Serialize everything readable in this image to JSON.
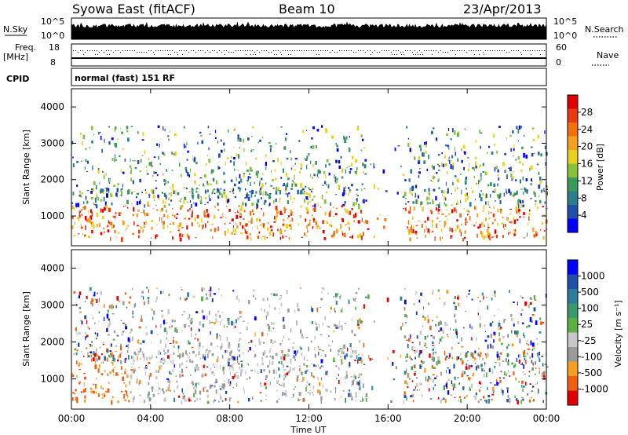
{
  "header": {
    "title": "Syowa East (fitACF)",
    "beam": "Beam 10",
    "date": "23/Apr/2013"
  },
  "top_panels": {
    "nsky_label": "N.Sky",
    "nsearch_label": "N.Search",
    "nsky_ticks": [
      "10^5",
      "10^0"
    ],
    "nsearch_ticks": [
      "10^5",
      "10^0"
    ],
    "freq_label_1": "Freq.",
    "freq_label_2": "[MHz]",
    "freq_ticks": [
      "18",
      "8"
    ],
    "nave_label": "Nave",
    "nave_ticks": [
      "60",
      "0"
    ],
    "cpid_label": "CPID",
    "cpid_value": "normal (fast) 151 RF"
  },
  "colors": {
    "power_scale": [
      "#0000ff",
      "#1f4fa8",
      "#2e7d8c",
      "#3a9a5a",
      "#86c23a",
      "#e8d020",
      "#f5a020",
      "#f07010",
      "#e83a10",
      "#e00000"
    ],
    "velocity_scale": [
      "#e00000",
      "#f06010",
      "#f5a020",
      "#9a9a9a",
      "#c8c8c8",
      "#5ab040",
      "#3a9a6a",
      "#2e7d9c",
      "#1f4fa8",
      "#0000ff"
    ]
  },
  "chart_data": [
    {
      "type": "heatmap",
      "title": "Power",
      "ylabel": "Slant Range [km]",
      "xlabel": "",
      "ylim": [
        180,
        4500
      ],
      "yticks": [
        "4000",
        "3000",
        "2000",
        "1000"
      ],
      "colorbar_label": "Power [dB]",
      "colorbar_ticks": [
        "28",
        "24",
        "20",
        "16",
        "12",
        "8",
        "4"
      ],
      "colorbar_range": [
        0,
        30
      ]
    },
    {
      "type": "heatmap",
      "title": "Velocity",
      "ylabel": "Slant Range [km]",
      "xlabel": "Time UT",
      "ylim": [
        180,
        4500
      ],
      "xlim": [
        "00:00",
        "24:00"
      ],
      "xticks": [
        "00:00",
        "04:00",
        "08:00",
        "12:00",
        "16:00",
        "20:00",
        "00:00"
      ],
      "yticks": [
        "4000",
        "3000",
        "2000",
        "1000"
      ],
      "colorbar_label": "Velocity [m s⁻¹]",
      "colorbar_ticks": [
        "1000",
        "500",
        "100",
        "25",
        "-25",
        "-100",
        "-500",
        "-1000"
      ],
      "colorbar_range": [
        -1000,
        1000
      ]
    }
  ]
}
